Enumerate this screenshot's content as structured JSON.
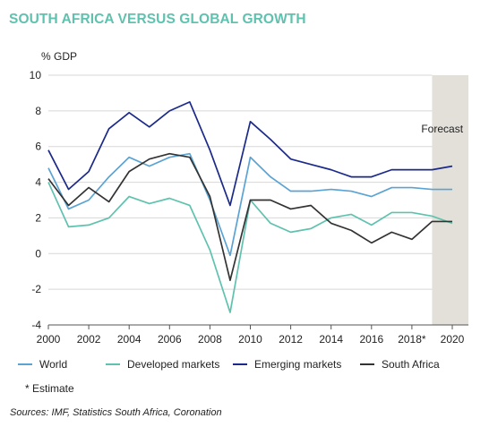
{
  "chart_data": {
    "type": "line",
    "title": "SOUTH AFRICA VERSUS GLOBAL GROWTH",
    "ylabel": "% GDP",
    "ylim": [
      -4,
      10
    ],
    "yticks": [
      -4,
      -2,
      0,
      2,
      4,
      6,
      8,
      10
    ],
    "xlim": [
      2000,
      2020
    ],
    "xticks": [
      2000,
      2002,
      2004,
      2006,
      2008,
      2010,
      2012,
      2014,
      2016,
      "2018*",
      2020
    ],
    "x": [
      2000,
      2001,
      2002,
      2003,
      2004,
      2005,
      2006,
      2007,
      2008,
      2009,
      2010,
      2011,
      2012,
      2013,
      2014,
      2015,
      2016,
      2017,
      2018,
      2019,
      2020
    ],
    "forecast": {
      "label": "Forecast",
      "from": 2019,
      "to": 2020.8
    },
    "grid": true,
    "series": [
      {
        "name": "World",
        "color": "#5ba3d3",
        "values": [
          4.8,
          2.5,
          3.0,
          4.3,
          5.4,
          4.9,
          5.4,
          5.6,
          3.0,
          -0.1,
          5.4,
          4.3,
          3.5,
          3.5,
          3.6,
          3.5,
          3.2,
          3.7,
          3.7,
          3.6,
          3.6
        ]
      },
      {
        "name": "Developed markets",
        "color": "#5fc2ae",
        "values": [
          4.0,
          1.5,
          1.6,
          2.0,
          3.2,
          2.8,
          3.1,
          2.7,
          0.2,
          -3.3,
          3.0,
          1.7,
          1.2,
          1.4,
          2.0,
          2.2,
          1.6,
          2.3,
          2.3,
          2.1,
          1.7
        ]
      },
      {
        "name": "Emerging markets",
        "color": "#1b2a8a",
        "values": [
          5.8,
          3.6,
          4.6,
          7.0,
          7.9,
          7.1,
          8.0,
          8.5,
          5.8,
          2.7,
          7.4,
          6.4,
          5.3,
          5.0,
          4.7,
          4.3,
          4.3,
          4.7,
          4.7,
          4.7,
          4.9
        ]
      },
      {
        "name": "South Africa",
        "color": "#333333",
        "values": [
          4.2,
          2.7,
          3.7,
          2.9,
          4.6,
          5.3,
          5.6,
          5.4,
          3.2,
          -1.5,
          3.0,
          3.0,
          2.5,
          2.7,
          1.7,
          1.3,
          0.6,
          1.2,
          0.8,
          1.8,
          1.8
        ]
      }
    ],
    "note": "* Estimate",
    "source": "Sources: IMF, Statistics South Africa, Coronation"
  }
}
